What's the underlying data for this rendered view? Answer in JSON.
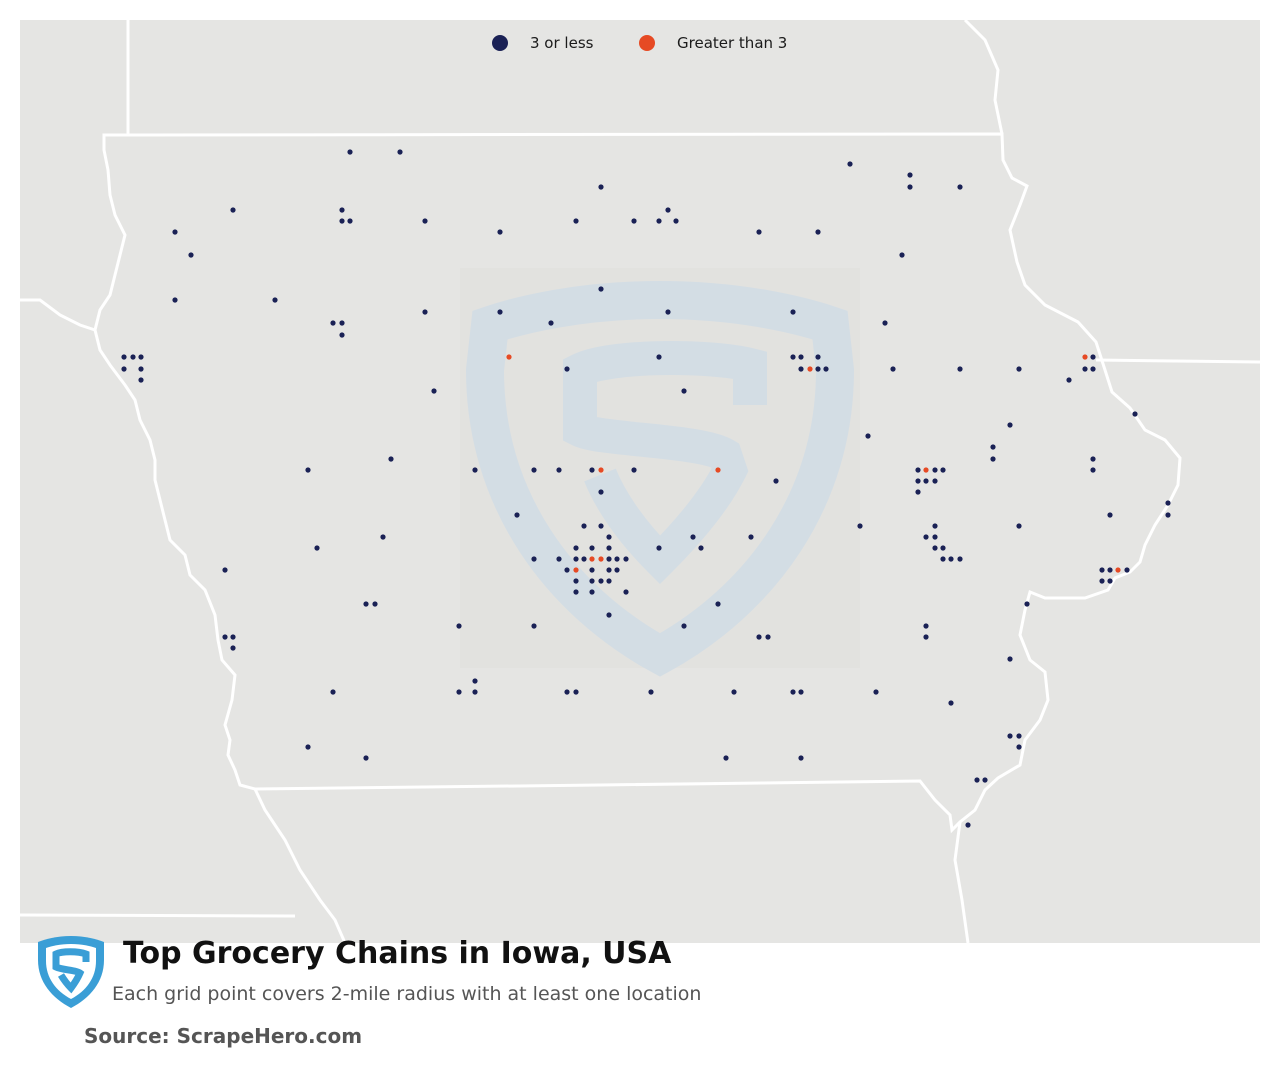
{
  "colors": {
    "background": "#e5e5e3",
    "border": "#ffffff",
    "low": "#1a2155",
    "high": "#e64a24",
    "logo": "#3a9ed6",
    "watermark": "#c6d7e6"
  },
  "legend": {
    "low_label": "3 or less",
    "high_label": "Greater than 3"
  },
  "footer": {
    "title": "Top Grocery Chains in Iowa, USA",
    "subtitle": "Each grid point covers 2-mile radius with at least one location",
    "source": "Source: ScrapeHero.com"
  },
  "logo": {
    "icon": "scrapehero-shield-icon",
    "watermark_icon": "scrapehero-watermark-icon"
  },
  "grid_points": {
    "low": [
      [
        350,
        152
      ],
      [
        400,
        152
      ],
      [
        850,
        164
      ],
      [
        910,
        175
      ],
      [
        910,
        187
      ],
      [
        960,
        187
      ],
      [
        601,
        187
      ],
      [
        233,
        210
      ],
      [
        342,
        210
      ],
      [
        668,
        210
      ],
      [
        342,
        221
      ],
      [
        350,
        221
      ],
      [
        425,
        221
      ],
      [
        576,
        221
      ],
      [
        634,
        221
      ],
      [
        659,
        221
      ],
      [
        676,
        221
      ],
      [
        175,
        232
      ],
      [
        500,
        232
      ],
      [
        759,
        232
      ],
      [
        818,
        232
      ],
      [
        191,
        255
      ],
      [
        902,
        255
      ],
      [
        175,
        300
      ],
      [
        275,
        300
      ],
      [
        425,
        312
      ],
      [
        500,
        312
      ],
      [
        668,
        312
      ],
      [
        793,
        312
      ],
      [
        601,
        289
      ],
      [
        333,
        323
      ],
      [
        342,
        323
      ],
      [
        551,
        323
      ],
      [
        885,
        323
      ],
      [
        342,
        335
      ],
      [
        124,
        357
      ],
      [
        133,
        357
      ],
      [
        141,
        357
      ],
      [
        659,
        357
      ],
      [
        793,
        357
      ],
      [
        801,
        357
      ],
      [
        818,
        357
      ],
      [
        1093,
        357
      ],
      [
        124,
        369
      ],
      [
        141,
        369
      ],
      [
        567,
        369
      ],
      [
        801,
        369
      ],
      [
        818,
        369
      ],
      [
        826,
        369
      ],
      [
        893,
        369
      ],
      [
        960,
        369
      ],
      [
        1019,
        369
      ],
      [
        1085,
        369
      ],
      [
        1093,
        369
      ],
      [
        141,
        380
      ],
      [
        1069,
        380
      ],
      [
        434,
        391
      ],
      [
        684,
        391
      ],
      [
        1135,
        414
      ],
      [
        1010,
        425
      ],
      [
        868,
        436
      ],
      [
        993,
        447
      ],
      [
        993,
        459
      ],
      [
        391,
        459
      ],
      [
        1093,
        459
      ],
      [
        308,
        470
      ],
      [
        475,
        470
      ],
      [
        534,
        470
      ],
      [
        559,
        470
      ],
      [
        592,
        470
      ],
      [
        634,
        470
      ],
      [
        918,
        470
      ],
      [
        935,
        470
      ],
      [
        943,
        470
      ],
      [
        1093,
        470
      ],
      [
        776,
        481
      ],
      [
        918,
        481
      ],
      [
        926,
        481
      ],
      [
        935,
        481
      ],
      [
        918,
        492
      ],
      [
        601,
        492
      ],
      [
        1168,
        503
      ],
      [
        517,
        515
      ],
      [
        1110,
        515
      ],
      [
        1168,
        515
      ],
      [
        584,
        526
      ],
      [
        601,
        526
      ],
      [
        860,
        526
      ],
      [
        935,
        526
      ],
      [
        1019,
        526
      ],
      [
        609,
        537
      ],
      [
        693,
        537
      ],
      [
        751,
        537
      ],
      [
        926,
        537
      ],
      [
        935,
        537
      ],
      [
        383,
        537
      ],
      [
        317,
        548
      ],
      [
        576,
        548
      ],
      [
        592,
        548
      ],
      [
        609,
        548
      ],
      [
        659,
        548
      ],
      [
        701,
        548
      ],
      [
        935,
        548
      ],
      [
        943,
        548
      ],
      [
        534,
        559
      ],
      [
        559,
        559
      ],
      [
        576,
        559
      ],
      [
        584,
        559
      ],
      [
        609,
        559
      ],
      [
        617,
        559
      ],
      [
        626,
        559
      ],
      [
        943,
        559
      ],
      [
        951,
        559
      ],
      [
        960,
        559
      ],
      [
        225,
        570
      ],
      [
        567,
        570
      ],
      [
        592,
        570
      ],
      [
        609,
        570
      ],
      [
        617,
        570
      ],
      [
        1102,
        570
      ],
      [
        1110,
        570
      ],
      [
        1127,
        570
      ],
      [
        576,
        581
      ],
      [
        592,
        581
      ],
      [
        601,
        581
      ],
      [
        609,
        581
      ],
      [
        1102,
        581
      ],
      [
        1110,
        581
      ],
      [
        576,
        592
      ],
      [
        592,
        592
      ],
      [
        626,
        592
      ],
      [
        366,
        604
      ],
      [
        375,
        604
      ],
      [
        718,
        604
      ],
      [
        1027,
        604
      ],
      [
        609,
        615
      ],
      [
        459,
        626
      ],
      [
        534,
        626
      ],
      [
        684,
        626
      ],
      [
        926,
        626
      ],
      [
        225,
        637
      ],
      [
        233,
        637
      ],
      [
        759,
        637
      ],
      [
        768,
        637
      ],
      [
        926,
        637
      ],
      [
        233,
        648
      ],
      [
        1010,
        659
      ],
      [
        475,
        681
      ],
      [
        333,
        692
      ],
      [
        459,
        692
      ],
      [
        475,
        692
      ],
      [
        567,
        692
      ],
      [
        576,
        692
      ],
      [
        651,
        692
      ],
      [
        734,
        692
      ],
      [
        793,
        692
      ],
      [
        801,
        692
      ],
      [
        876,
        692
      ],
      [
        951,
        703
      ],
      [
        1010,
        736
      ],
      [
        1019,
        736
      ],
      [
        308,
        747
      ],
      [
        1019,
        747
      ],
      [
        366,
        758
      ],
      [
        726,
        758
      ],
      [
        801,
        758
      ],
      [
        977,
        780
      ],
      [
        985,
        780
      ],
      [
        968,
        825
      ]
    ],
    "high": [
      [
        509,
        357
      ],
      [
        810,
        369
      ],
      [
        1085,
        357
      ],
      [
        601,
        470
      ],
      [
        718,
        470
      ],
      [
        926,
        470
      ],
      [
        592,
        559
      ],
      [
        601,
        559
      ],
      [
        576,
        570
      ],
      [
        1118,
        570
      ]
    ]
  }
}
